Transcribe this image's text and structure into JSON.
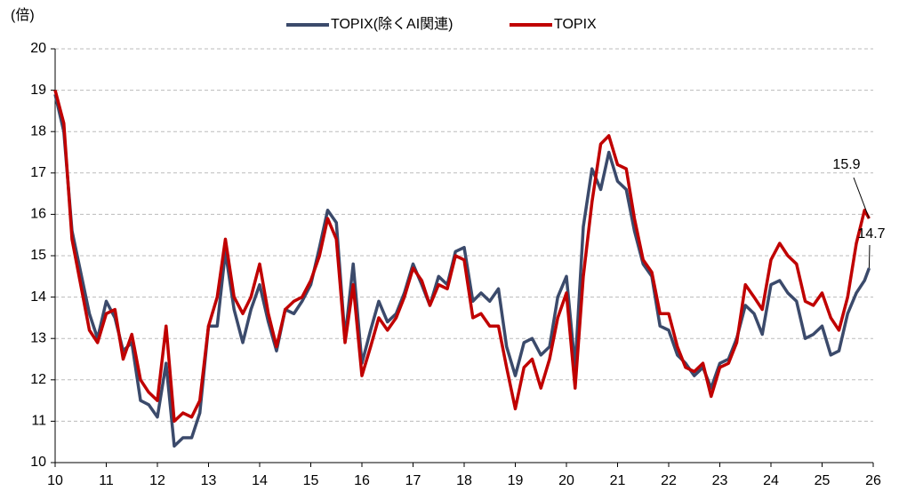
{
  "chart_data": {
    "type": "line",
    "y_unit_label": "(倍)",
    "x": [
      10,
      10.17,
      10.33,
      10.5,
      10.67,
      10.83,
      11,
      11.17,
      11.33,
      11.5,
      11.67,
      11.83,
      12,
      12.17,
      12.33,
      12.5,
      12.67,
      12.83,
      13,
      13.17,
      13.33,
      13.5,
      13.67,
      13.83,
      14,
      14.17,
      14.33,
      14.5,
      14.67,
      14.83,
      15,
      15.17,
      15.33,
      15.5,
      15.67,
      15.83,
      16,
      16.17,
      16.33,
      16.5,
      16.67,
      16.83,
      17,
      17.17,
      17.33,
      17.5,
      17.67,
      17.83,
      18,
      18.17,
      18.33,
      18.5,
      18.67,
      18.83,
      19,
      19.17,
      19.33,
      19.5,
      19.67,
      19.83,
      20,
      20.17,
      20.33,
      20.5,
      20.67,
      20.83,
      21,
      21.17,
      21.33,
      21.5,
      21.67,
      21.83,
      22,
      22.17,
      22.33,
      22.5,
      22.67,
      22.83,
      23,
      23.17,
      23.33,
      23.5,
      23.67,
      23.83,
      24,
      24.17,
      24.33,
      24.5,
      24.67,
      24.83,
      25,
      25.17,
      25.33,
      25.5,
      25.67,
      25.83,
      25.92
    ],
    "series": [
      {
        "name": "TOPIX(除くAI関連)",
        "color": "#3b4a6b",
        "values": [
          18.9,
          18.0,
          15.6,
          14.6,
          13.6,
          13.0,
          13.9,
          13.5,
          12.7,
          12.9,
          11.5,
          11.4,
          11.1,
          12.4,
          10.4,
          10.6,
          10.6,
          11.2,
          13.3,
          13.3,
          15.1,
          13.7,
          12.9,
          13.7,
          14.3,
          13.4,
          12.7,
          13.7,
          13.6,
          13.9,
          14.3,
          15.2,
          16.1,
          15.8,
          13.0,
          14.8,
          12.4,
          13.2,
          13.9,
          13.4,
          13.6,
          14.1,
          14.8,
          14.3,
          13.8,
          14.5,
          14.3,
          15.1,
          15.2,
          13.9,
          14.1,
          13.9,
          14.2,
          12.8,
          12.1,
          12.9,
          13.0,
          12.6,
          12.8,
          14.0,
          14.5,
          12.3,
          15.7,
          17.1,
          16.6,
          17.5,
          16.8,
          16.6,
          15.6,
          14.8,
          14.5,
          13.3,
          13.2,
          12.6,
          12.4,
          12.1,
          12.3,
          11.8,
          12.4,
          12.5,
          13.0,
          13.8,
          13.6,
          13.1,
          14.3,
          14.4,
          14.1,
          13.9,
          13.0,
          13.1,
          13.3,
          12.6,
          12.7,
          13.6,
          14.1,
          14.4,
          14.7
        ]
      },
      {
        "name": "TOPIX",
        "color": "#c00000",
        "values": [
          19.0,
          18.2,
          15.4,
          14.3,
          13.2,
          12.9,
          13.6,
          13.7,
          12.5,
          13.1,
          12.0,
          11.7,
          11.5,
          13.3,
          11.0,
          11.2,
          11.1,
          11.5,
          13.3,
          14.0,
          15.4,
          14.0,
          13.6,
          14.0,
          14.8,
          13.6,
          12.8,
          13.7,
          13.9,
          14.0,
          14.4,
          15.0,
          15.9,
          15.4,
          12.9,
          14.3,
          12.1,
          12.8,
          13.5,
          13.2,
          13.5,
          14.0,
          14.7,
          14.4,
          13.8,
          14.3,
          14.2,
          15.0,
          14.9,
          13.5,
          13.6,
          13.3,
          13.3,
          12.3,
          11.3,
          12.3,
          12.5,
          11.8,
          12.5,
          13.5,
          14.1,
          11.8,
          14.5,
          16.3,
          17.7,
          17.9,
          17.2,
          17.1,
          15.9,
          14.9,
          14.6,
          13.6,
          13.6,
          12.8,
          12.3,
          12.2,
          12.4,
          11.6,
          12.3,
          12.4,
          12.9,
          14.3,
          14.0,
          13.7,
          14.9,
          15.3,
          15.0,
          14.8,
          13.9,
          13.8,
          14.1,
          13.5,
          13.2,
          14.0,
          15.3,
          16.1,
          15.9
        ]
      }
    ],
    "annotations": [
      {
        "x": 25.92,
        "y": 15.9
      },
      {
        "x": 25.92,
        "y": 14.7
      }
    ],
    "xlim": [
      10,
      26
    ],
    "xticks": [
      10,
      11,
      12,
      13,
      14,
      15,
      16,
      17,
      18,
      19,
      20,
      21,
      22,
      23,
      24,
      25,
      26
    ],
    "ylim": [
      10,
      20
    ],
    "yticks": [
      10,
      11,
      12,
      13,
      14,
      15,
      16,
      17,
      18,
      19,
      20
    ],
    "grid": true,
    "legend": "top"
  }
}
